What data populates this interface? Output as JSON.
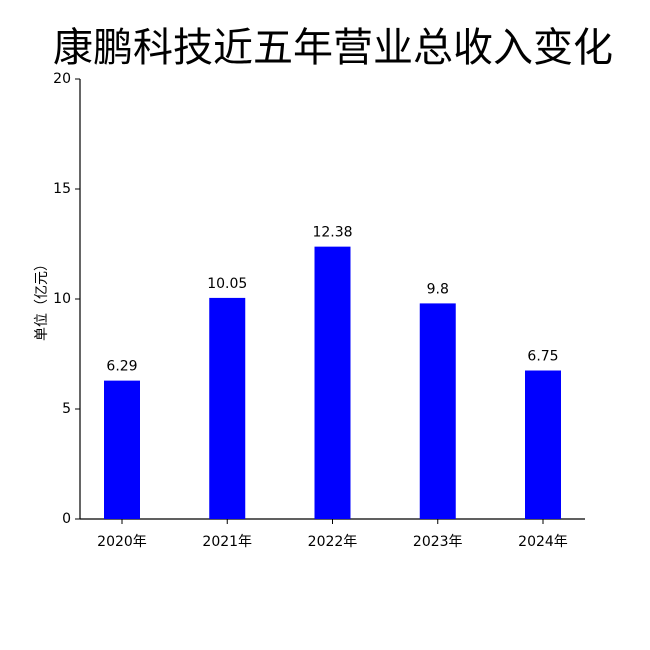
{
  "chart_data": {
    "type": "bar",
    "title": "康鹏科技近五年营业总收入变化",
    "y_label": "单位（亿元）",
    "categories": [
      "2020年",
      "2021年",
      "2022年",
      "2023年",
      "2024年"
    ],
    "values": [
      6.29,
      10.05,
      12.38,
      9.8,
      6.75
    ],
    "color": "#0000ff",
    "ylim": [
      0,
      20
    ],
    "yticks": [
      0,
      5,
      10,
      15,
      20
    ],
    "grid": false
  }
}
